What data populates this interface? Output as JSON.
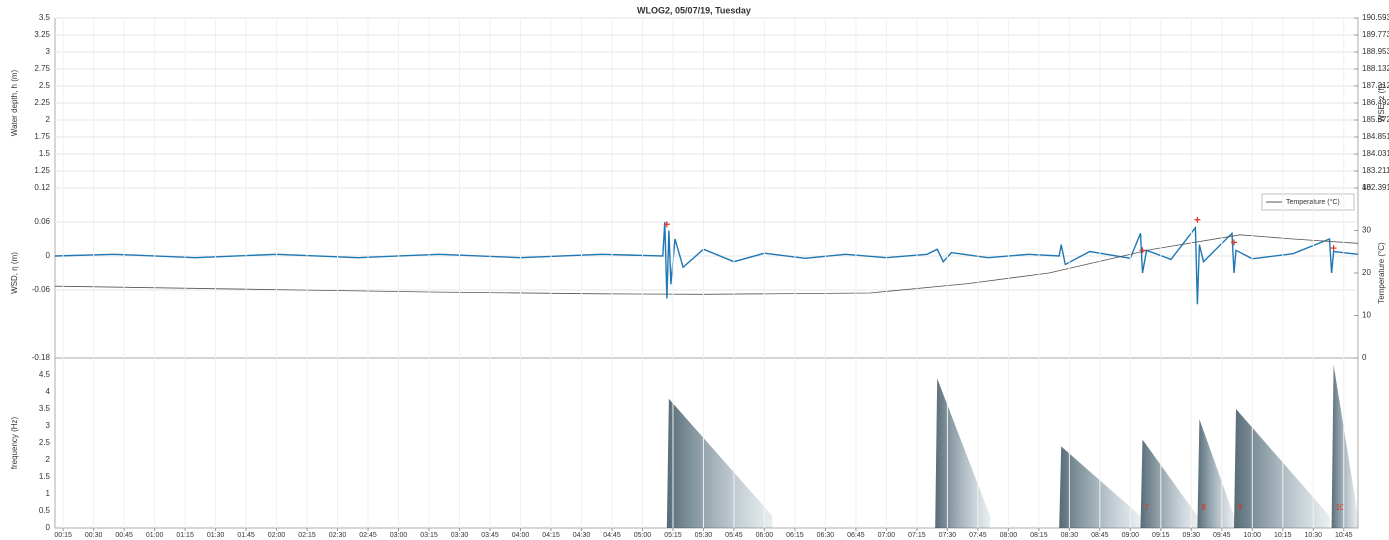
{
  "chart_data": [
    {
      "type": "line",
      "title": "WLOG2, 05/07/19, Tuesday",
      "ylabel": "Water depth, h (m)",
      "y2label": "WSE, z (ft)",
      "xlim": [
        11,
        652
      ],
      "ylim": [
        1,
        3.5
      ],
      "yticks": [
        1.25,
        1.5,
        1.75,
        2,
        2.25,
        2.5,
        2.75,
        3,
        3.25,
        3.5
      ],
      "y2lim": [
        182.391,
        190.593
      ],
      "y2ticks": [
        182.391,
        183.211,
        184.031,
        184.851,
        185.672,
        186.492,
        187.312,
        188.132,
        188.953,
        189.773,
        190.593
      ],
      "grid": true,
      "series": []
    },
    {
      "type": "line",
      "ylabel": "WSD, η (m)",
      "y2label": "Temperature (°C)",
      "xlim": [
        11,
        652
      ],
      "ylim": [
        -0.18,
        0.12
      ],
      "yticks": [
        -0.18,
        -0.06,
        0,
        0.06,
        0.12
      ],
      "y2lim": [
        0,
        40
      ],
      "y2ticks": [
        0,
        10,
        20,
        30,
        40
      ],
      "grid": true,
      "legend": "upper right",
      "series": [
        {
          "color": "#1f77b4",
          "axis": "y",
          "x": [
            11,
            40,
            80,
            120,
            160,
            200,
            240,
            280,
            310,
            311,
            312,
            313,
            314,
            316,
            320,
            330,
            345,
            360,
            380,
            400,
            420,
            440,
            445,
            448,
            452,
            470,
            490,
            505,
            506,
            508,
            520,
            540,
            545,
            546,
            548,
            560,
            572,
            573,
            574,
            576,
            590,
            591,
            592,
            600,
            620,
            638,
            639,
            640,
            652
          ],
          "values": [
            0,
            0.003,
            -0.003,
            0.003,
            -0.003,
            0.003,
            -0.003,
            0.003,
            0,
            0.06,
            -0.075,
            0.045,
            -0.05,
            0.03,
            -0.02,
            0.012,
            -0.01,
            0.005,
            -0.004,
            0.003,
            -0.003,
            0.003,
            0.012,
            -0.01,
            0.006,
            -0.003,
            0.003,
            0,
            0.02,
            -0.015,
            0.008,
            -0.004,
            0.04,
            -0.03,
            0.01,
            -0.006,
            0.05,
            -0.085,
            0.02,
            -0.01,
            0.04,
            -0.03,
            0.01,
            -0.005,
            0.004,
            0.03,
            -0.03,
            0.008,
            0.003
          ]
        },
        {
          "color": "#e0301e",
          "axis": "y",
          "mode": "markers",
          "x": [
            312,
            546,
            573,
            591,
            640
          ],
          "values": [
            0.056,
            0.01,
            0.064,
            0.024,
            0.014
          ]
        },
        {
          "name": "Temperature (°C)",
          "color": "#555555",
          "axis": "y2",
          "x": [
            11,
            131,
            200,
            279,
            330,
            412,
            460,
            500,
            550,
            594,
            620,
            652
          ],
          "values": [
            16.9,
            16.0,
            15.5,
            15.1,
            15.0,
            15.3,
            17.5,
            20,
            25.5,
            29,
            28,
            27
          ]
        }
      ]
    },
    {
      "type": "spectrogram",
      "ylabel": "frequency (Hz)",
      "color": "#2f4f5f",
      "xlim": [
        11,
        652
      ],
      "ylim": [
        0,
        5
      ],
      "yticks": [
        0,
        0.5,
        1,
        1.5,
        2,
        2.5,
        3,
        3.5,
        4,
        4.5
      ],
      "xticks": [
        {
          "value": 15,
          "label": "00:15"
        },
        {
          "value": 30,
          "label": "00:30"
        },
        {
          "value": 45,
          "label": "00:45"
        },
        {
          "value": 60,
          "label": "01:00"
        },
        {
          "value": 75,
          "label": "01:15"
        },
        {
          "value": 90,
          "label": "01:30"
        },
        {
          "value": 105,
          "label": "01:45"
        },
        {
          "value": 120,
          "label": "02:00"
        },
        {
          "value": 135,
          "label": "02:15"
        },
        {
          "value": 150,
          "label": "02:30"
        },
        {
          "value": 165,
          "label": "02:45"
        },
        {
          "value": 180,
          "label": "03:00"
        },
        {
          "value": 195,
          "label": "03:15"
        },
        {
          "value": 210,
          "label": "03:30"
        },
        {
          "value": 225,
          "label": "03:45"
        },
        {
          "value": 240,
          "label": "04:00"
        },
        {
          "value": 255,
          "label": "04:15"
        },
        {
          "value": 270,
          "label": "04:30"
        },
        {
          "value": 285,
          "label": "04:45"
        },
        {
          "value": 300,
          "label": "05:00"
        },
        {
          "value": 315,
          "label": "05:15"
        },
        {
          "value": 330,
          "label": "05:30"
        },
        {
          "value": 345,
          "label": "05:45"
        },
        {
          "value": 360,
          "label": "06:00"
        },
        {
          "value": 375,
          "label": "06:15"
        },
        {
          "value": 390,
          "label": "06:30"
        },
        {
          "value": 405,
          "label": "06:45"
        },
        {
          "value": 420,
          "label": "07:00"
        },
        {
          "value": 435,
          "label": "07:15"
        },
        {
          "value": 450,
          "label": "07:30"
        },
        {
          "value": 465,
          "label": "07:45"
        },
        {
          "value": 480,
          "label": "08:00"
        },
        {
          "value": 495,
          "label": "08:15"
        },
        {
          "value": 510,
          "label": "08:30"
        },
        {
          "value": 525,
          "label": "08:45"
        },
        {
          "value": 540,
          "label": "09:00"
        },
        {
          "value": 555,
          "label": "09:15"
        },
        {
          "value": 570,
          "label": "09:30"
        },
        {
          "value": 585,
          "label": "09:45"
        },
        {
          "value": 600,
          "label": "10:00"
        },
        {
          "value": 615,
          "label": "10:15"
        },
        {
          "value": 630,
          "label": "10:30"
        },
        {
          "value": 645,
          "label": "10:45"
        }
      ],
      "events": [
        {
          "start": 312,
          "end": 364,
          "fmax": 3.8
        },
        {
          "start": 444,
          "end": 471,
          "fmax": 4.4
        },
        {
          "start": 505,
          "end": 545,
          "fmax": 2.4
        },
        {
          "start": 545,
          "end": 573,
          "fmax": 2.6,
          "label": "7"
        },
        {
          "start": 573,
          "end": 591,
          "fmax": 3.2,
          "label": "8"
        },
        {
          "start": 591,
          "end": 638,
          "fmax": 3.5,
          "label": "9"
        },
        {
          "start": 639,
          "end": 652,
          "fmax": 4.8,
          "label": "10"
        }
      ]
    }
  ]
}
